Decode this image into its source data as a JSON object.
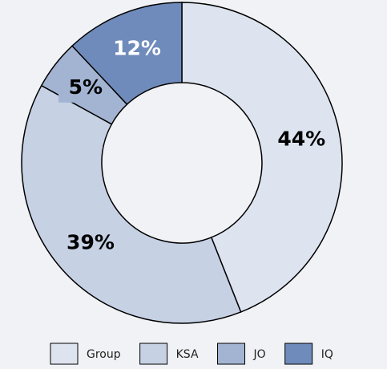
{
  "chart_data": {
    "type": "donut",
    "categories": [
      "Group",
      "KSA",
      "JO",
      "IQ"
    ],
    "values": [
      44,
      39,
      5,
      12
    ],
    "value_labels": [
      "44%",
      "39%",
      "5%",
      "12%"
    ],
    "colors": [
      "#dde4ef",
      "#c6d1e4",
      "#a3b4d3",
      "#6f8bbb"
    ],
    "label_colors": [
      "#000000",
      "#000000",
      "#000000",
      "#ffffff"
    ],
    "legend": "bottom"
  }
}
